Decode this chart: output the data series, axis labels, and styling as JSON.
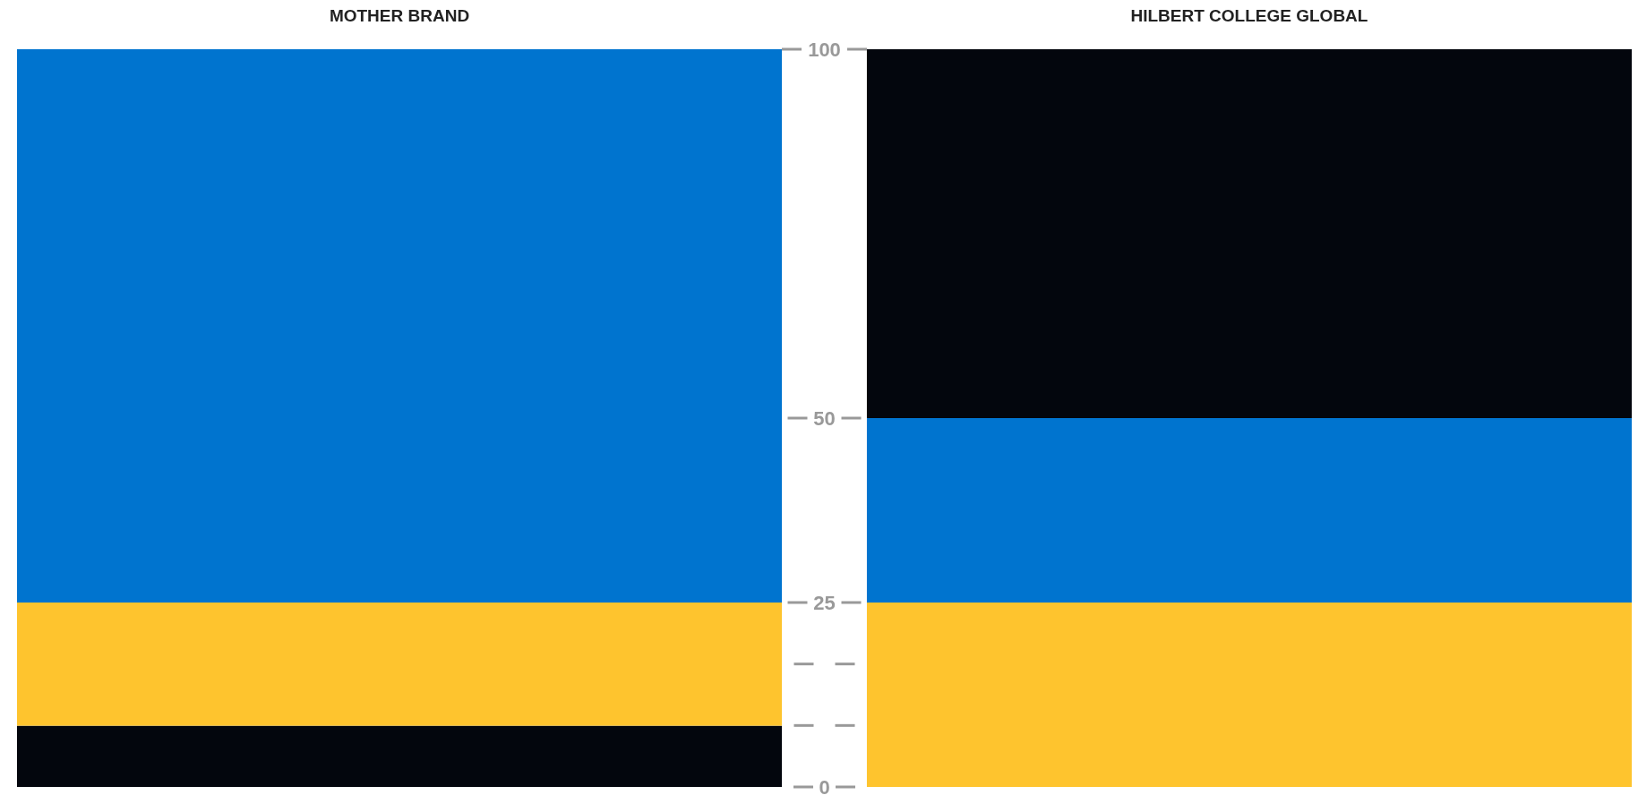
{
  "chart_data": {
    "type": "bar",
    "categories": [
      "MOTHER BRAND",
      "HILBERT COLLEGE GLOBAL"
    ],
    "stacked": true,
    "ylim": [
      0,
      100
    ],
    "yticks": [
      0,
      25,
      50,
      100
    ],
    "series": [
      {
        "colors": [
          "#03060d",
          "#fec42e"
        ],
        "values": [
          8.3,
          25
        ]
      },
      {
        "colors": [
          "#fec42e",
          "#0074cf"
        ],
        "values": [
          16.7,
          25
        ]
      },
      {
        "colors": [
          "#0074cf",
          "#03060d"
        ],
        "values": [
          75,
          50
        ]
      }
    ]
  }
}
